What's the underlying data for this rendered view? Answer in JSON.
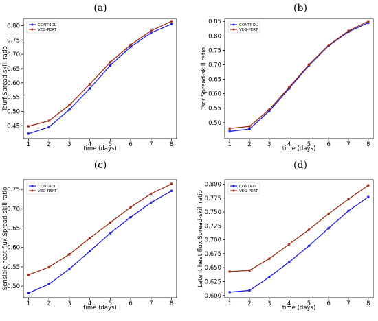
{
  "colors": {
    "control": "#1f1fd6",
    "vegpert": "#9b2a14",
    "marker_control": "#1f1fd6",
    "marker_vegpert": "#9b2a14"
  },
  "chart_data": [
    {
      "panel": "(a)",
      "type": "line",
      "xlabel": "time (days)",
      "ylabel": "Tsurf Spread-skill ratio",
      "x": [
        1,
        2,
        3,
        4,
        5,
        6,
        7,
        8
      ],
      "xticks": [
        "1",
        "2",
        "3",
        "4",
        "5",
        "6",
        "7",
        "8"
      ],
      "ylim": [
        0.405,
        0.825
      ],
      "yticks": [
        0.45,
        0.5,
        0.55,
        0.6,
        0.65,
        0.7,
        0.75,
        0.8
      ],
      "ytick_labels": [
        "0.45",
        "0.50",
        "0.55",
        "0.60",
        "0.65",
        "0.70",
        "0.75",
        "0.80"
      ],
      "legend": "top-left",
      "grid": false,
      "series": [
        {
          "name": "CONTROL",
          "color": "#1f1fd6",
          "values": [
            0.422,
            0.445,
            0.506,
            0.58,
            0.661,
            0.726,
            0.775,
            0.805
          ]
        },
        {
          "name": "VEG-PERT",
          "color": "#9b2a14",
          "values": [
            0.448,
            0.467,
            0.522,
            0.595,
            0.672,
            0.733,
            0.782,
            0.815
          ]
        }
      ]
    },
    {
      "panel": "(b)",
      "type": "line",
      "xlabel": "time (days)",
      "ylabel": "Tscr Spread-skill ratio",
      "x": [
        1,
        2,
        3,
        4,
        5,
        6,
        7,
        8
      ],
      "xticks": [
        "1",
        "2",
        "3",
        "4",
        "5",
        "6",
        "7",
        "8"
      ],
      "ylim": [
        0.445,
        0.86
      ],
      "yticks": [
        0.5,
        0.55,
        0.6,
        0.65,
        0.7,
        0.75,
        0.8,
        0.85
      ],
      "ytick_labels": [
        "0.50",
        "0.55",
        "0.60",
        "0.65",
        "0.70",
        "0.75",
        "0.80",
        "0.85"
      ],
      "legend": "top-left",
      "grid": false,
      "series": [
        {
          "name": "CONTROL",
          "color": "#1f1fd6",
          "values": [
            0.47,
            0.478,
            0.54,
            0.618,
            0.697,
            0.766,
            0.814,
            0.845
          ]
        },
        {
          "name": "VEG-PERT",
          "color": "#9b2a14",
          "values": [
            0.48,
            0.487,
            0.545,
            0.622,
            0.7,
            0.768,
            0.817,
            0.85
          ]
        }
      ]
    },
    {
      "panel": "(c)",
      "type": "line",
      "xlabel": "time (days)",
      "ylabel": "Sensible heat flux Spread-skill ratio",
      "x": [
        1,
        2,
        3,
        4,
        5,
        6,
        7,
        8
      ],
      "xticks": [
        "1",
        "2",
        "3",
        "4",
        "5",
        "6",
        "7",
        "8"
      ],
      "ylim": [
        0.47,
        0.775
      ],
      "yticks": [
        0.5,
        0.55,
        0.6,
        0.65,
        0.7,
        0.75
      ],
      "ytick_labels": [
        "0.50",
        "0.55",
        "0.60",
        "0.65",
        "0.70",
        "0.75"
      ],
      "legend": "top-left",
      "grid": false,
      "series": [
        {
          "name": "CONTROL",
          "color": "#1f1fd6",
          "values": [
            0.482,
            0.505,
            0.544,
            0.59,
            0.637,
            0.678,
            0.716,
            0.746
          ]
        },
        {
          "name": "VEG-PERT",
          "color": "#9b2a14",
          "values": [
            0.529,
            0.549,
            0.582,
            0.624,
            0.664,
            0.704,
            0.739,
            0.764
          ]
        }
      ]
    },
    {
      "panel": "(d)",
      "type": "line",
      "xlabel": "time (days)",
      "ylabel": "Latent heat flux Spread-skill ratio",
      "x": [
        1,
        2,
        3,
        4,
        5,
        6,
        7,
        8
      ],
      "xticks": [
        "1",
        "2",
        "3",
        "4",
        "5",
        "6",
        "7",
        "8"
      ],
      "ylim": [
        0.596,
        0.808
      ],
      "yticks": [
        0.6,
        0.625,
        0.65,
        0.675,
        0.7,
        0.725,
        0.75,
        0.775,
        0.8
      ],
      "ytick_labels": [
        "0.600",
        "0.625",
        "0.650",
        "0.675",
        "0.700",
        "0.725",
        "0.750",
        "0.775",
        "0.800"
      ],
      "legend": "top-left",
      "grid": false,
      "series": [
        {
          "name": "CONTROL",
          "color": "#1f1fd6",
          "values": [
            0.606,
            0.609,
            0.633,
            0.66,
            0.689,
            0.721,
            0.752,
            0.777
          ]
        },
        {
          "name": "VEG-PERT",
          "color": "#9b2a14",
          "values": [
            0.643,
            0.645,
            0.666,
            0.692,
            0.718,
            0.747,
            0.773,
            0.798
          ]
        }
      ]
    }
  ]
}
